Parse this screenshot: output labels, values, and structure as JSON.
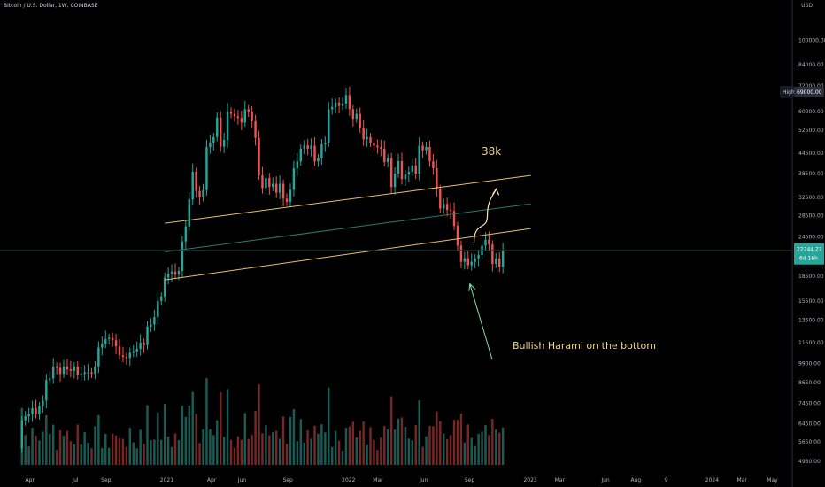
{
  "header": {
    "symbol": "Bitcoin / U.S. Dollar, 1W, COINBASE",
    "currency": "USD"
  },
  "colors": {
    "up": "#26a69a",
    "down": "#ef5350",
    "channel": "#e8c06a",
    "midline": "#2a7a6a",
    "arrow": "#ffe9b0",
    "pointer": "#7ee0b0"
  },
  "annotations": {
    "target": "38k",
    "pattern": "Bullish Harami on the bottom",
    "high_label": "High",
    "high_value": "69000.00",
    "last_price": "22244.27",
    "countdown": "6d 16h"
  },
  "chart_data": {
    "type": "candlestick",
    "scale": "log",
    "ylim": [
      4800,
      125000
    ],
    "y_ticks": [
      "100000.00",
      "84000.00",
      "72000.00",
      "60000.00",
      "52500.00",
      "44500.00",
      "38500.00",
      "32500.00",
      "28500.00",
      "24500.00",
      "18500.00",
      "15500.00",
      "13500.00",
      "11500.00",
      "9900.00",
      "8650.00",
      "7450.00",
      "6450.00",
      "5650.00",
      "4930.00"
    ],
    "x_ticks": [
      {
        "label": "Apr",
        "date": "2020-04-01"
      },
      {
        "label": "Jul",
        "date": "2020-07-01"
      },
      {
        "label": "Sep",
        "date": "2020-09-01"
      },
      {
        "label": "2021",
        "date": "2021-01-01"
      },
      {
        "label": "Apr",
        "date": "2021-04-01"
      },
      {
        "label": "Jun",
        "date": "2021-06-01"
      },
      {
        "label": "Sep",
        "date": "2021-09-01"
      },
      {
        "label": "2022",
        "date": "2022-01-01"
      },
      {
        "label": "Mar",
        "date": "2022-03-01"
      },
      {
        "label": "Jun",
        "date": "2022-06-01"
      },
      {
        "label": "Sep",
        "date": "2022-09-01"
      },
      {
        "label": "2023",
        "date": "2023-01-01"
      },
      {
        "label": "Mar",
        "date": "2023-03-01"
      },
      {
        "label": "Jun",
        "date": "2023-06-01"
      },
      {
        "label": "Aug",
        "date": "2023-08-01"
      },
      {
        "label": "9",
        "date": "2023-10-01"
      },
      {
        "label": "2024",
        "date": "2024-01-01"
      },
      {
        "label": "Mar",
        "date": "2024-03-01"
      },
      {
        "label": "May",
        "date": "2024-05-01"
      }
    ],
    "series": [
      {
        "name": "BTCUSD",
        "closes": [
          6600,
          6800,
          6900,
          7200,
          6900,
          7300,
          7600,
          8800,
          8900,
          9700,
          9600,
          9200,
          9700,
          9500,
          9400,
          9700,
          9100,
          9200,
          9300,
          9300,
          9200,
          9700,
          11100,
          11400,
          11800,
          11900,
          11700,
          11200,
          10500,
          10400,
          10300,
          10700,
          10800,
          11000,
          11500,
          11300,
          12900,
          13100,
          13800,
          15500,
          16000,
          18300,
          18800,
          19100,
          18700,
          19200,
          23700,
          26400,
          32000,
          39000,
          34000,
          32500,
          34200,
          46500,
          48000,
          50000,
          57500,
          46700,
          49000,
          60000,
          59000,
          58000,
          57300,
          55500,
          61000,
          60000,
          56000,
          49700,
          38000,
          34700,
          37300,
          35000,
          35800,
          33600,
          35800,
          32200,
          31500,
          34300,
          40000,
          42000,
          46000,
          47100,
          46000,
          47000,
          42000,
          43000,
          47500,
          48000,
          61000,
          62000,
          64000,
          62500,
          63500,
          67500,
          61000,
          57000,
          59000,
          53500,
          49200,
          50000,
          48000,
          47000,
          46500,
          46000,
          41800,
          43000,
          35000,
          38500,
          42100,
          37000,
          38300,
          39000,
          40800,
          38500,
          47000,
          45500,
          46600,
          42000,
          40000,
          34500,
          30000,
          31000,
          29700,
          29500,
          26500,
          23000,
          20500,
          21000,
          20000,
          20500,
          21000,
          21500,
          23000,
          24000,
          23200,
          20200,
          21000,
          19800,
          22244
        ]
      }
    ]
  }
}
